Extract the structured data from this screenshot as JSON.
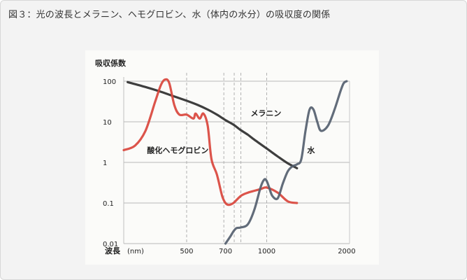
{
  "caption": "図３：光の波長とメラニン、ヘモグロビン、水（体内の水分）の吸収度の関係",
  "chart_data": {
    "type": "line",
    "title": "図３：光の波長とメラニン、ヘモグロビン、水（体内の水分）の吸収度の関係",
    "ylabel": "吸収係数",
    "xlabel": "波長",
    "xlabel_unit": "(nm)",
    "x_scale": "log",
    "y_scale": "log",
    "xlim": [
      290,
      2050
    ],
    "ylim": [
      0.01,
      100
    ],
    "x_ticks": [
      {
        "value": 500,
        "label": "500"
      },
      {
        "value": 700,
        "label": "700"
      },
      {
        "value": 1000,
        "label": "1000"
      },
      {
        "value": 2000,
        "label": "2000"
      }
    ],
    "y_ticks": [
      {
        "value": 100,
        "label": "100"
      },
      {
        "value": 10,
        "label": "10"
      },
      {
        "value": 1,
        "label": "1"
      },
      {
        "value": 0.1,
        "label": "0.1"
      },
      {
        "value": 0.01,
        "label": "0.01"
      }
    ],
    "dashed_verticals": [
      500,
      690,
      755,
      800,
      1000
    ],
    "series": [
      {
        "name": "メラニン",
        "color": "#2e2e2e",
        "x": [
          300,
          350,
          400,
          450,
          500,
          550,
          600,
          650,
          700,
          750,
          800,
          850,
          900,
          1000,
          1100,
          1200,
          1300
        ],
        "y": [
          95,
          72,
          55,
          42,
          33,
          26,
          20,
          15,
          11,
          8.5,
          6.2,
          4.8,
          3.6,
          2.2,
          1.4,
          0.95,
          0.72
        ]
      },
      {
        "name": "酸化ヘモグロビン",
        "color": "#d9453c",
        "x": [
          290,
          320,
          350,
          380,
          400,
          415,
          430,
          450,
          470,
          500,
          530,
          540,
          560,
          578,
          600,
          620,
          650,
          680,
          700,
          720,
          750,
          800,
          850,
          900,
          950,
          1000,
          1100,
          1200,
          1300
        ],
        "y": [
          2.0,
          2.6,
          6,
          30,
          80,
          110,
          90,
          25,
          15,
          15,
          12,
          16,
          12,
          16,
          8,
          1.2,
          0.5,
          0.15,
          0.1,
          0.09,
          0.1,
          0.15,
          0.18,
          0.2,
          0.22,
          0.24,
          0.18,
          0.11,
          0.1
        ]
      },
      {
        "name": "水",
        "color": "#55606f",
        "x": [
          700,
          730,
          750,
          770,
          800,
          850,
          900,
          950,
          980,
          1000,
          1020,
          1050,
          1100,
          1150,
          1200,
          1250,
          1300,
          1350,
          1400,
          1450,
          1500,
          1550,
          1600,
          1700,
          1800,
          1900,
          1950,
          2000
        ],
        "y": [
          0.01,
          0.015,
          0.02,
          0.024,
          0.025,
          0.03,
          0.07,
          0.25,
          0.38,
          0.35,
          0.25,
          0.15,
          0.13,
          0.3,
          0.6,
          0.8,
          0.9,
          1.2,
          6,
          20,
          20,
          10,
          6,
          8,
          20,
          60,
          90,
          100
        ]
      }
    ],
    "annotations": [
      {
        "text": "メラニン",
        "x": 870,
        "y": 14
      },
      {
        "text": "酸化ヘモグロビン",
        "x": 355,
        "y": 1.7
      },
      {
        "text": "水",
        "x": 1420,
        "y": 1.7
      }
    ]
  }
}
